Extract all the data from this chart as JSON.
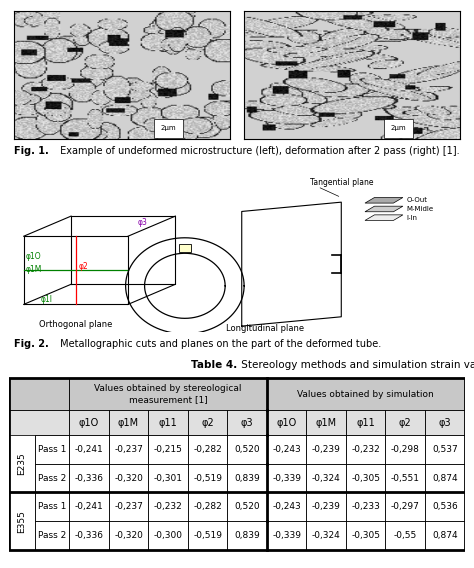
{
  "fig1_caption_bold": "Fig. 1.",
  "fig1_caption_normal": " Example of undeformed microstructure (left), deformation after 2 pass (right) [1].",
  "fig2_caption_bold": "Fig. 2.",
  "fig2_caption_normal": " Metallographic cuts and planes on the part of the deformed tube.",
  "table_bold": "Table 4.",
  "table_normal": " Stereology methods and simulation strain values result.",
  "col_group1": "Values obtained by stereological\nmeasurement [1]",
  "col_group2": "Values obtained by simulation",
  "sub_cols": [
    "φ1O",
    "φ1M",
    "φ11",
    "φ2",
    "φ3"
  ],
  "row_groups": [
    "E235",
    "E355"
  ],
  "row_labels": [
    "Pass 1",
    "Pass 2"
  ],
  "row_data": [
    [
      "E235",
      "Pass 1",
      "-0,241",
      "-0,237",
      "-0,215",
      "-0,282",
      "0,520",
      "-0,243",
      "-0,239",
      "-0,232",
      "-0,298",
      "0,537"
    ],
    [
      "E235",
      "Pass 2",
      "-0,336",
      "-0,320",
      "-0,301",
      "-0,519",
      "0,839",
      "-0,339",
      "-0,324",
      "-0,305",
      "-0,551",
      "0,874"
    ],
    [
      "E355",
      "Pass 1",
      "-0,241",
      "-0,237",
      "-0,232",
      "-0,282",
      "0,520",
      "-0,243",
      "-0,239",
      "-0,233",
      "-0,297",
      "0,536"
    ],
    [
      "E355",
      "Pass 2",
      "-0,336",
      "-0,320",
      "-0,300",
      "-0,519",
      "0,839",
      "-0,339",
      "-0,324",
      "-0,305",
      "-0,55",
      "0,874"
    ]
  ],
  "gray_header": "#c8c8c8",
  "gray_subheader": "#e0e0e0",
  "fig_width": 4.74,
  "fig_height": 5.68,
  "dpi": 100
}
